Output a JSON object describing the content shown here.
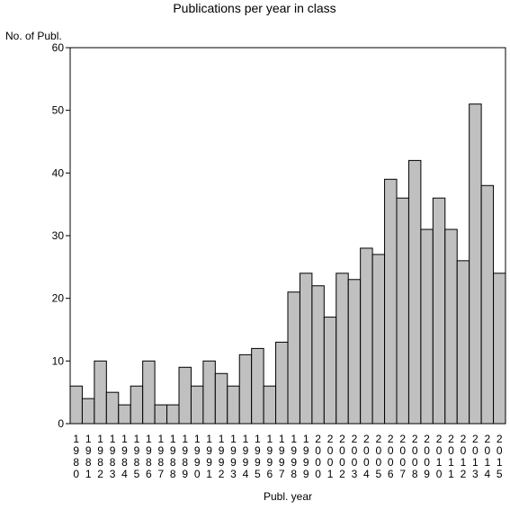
{
  "chart_data": {
    "type": "bar",
    "title": "Publications per year in class",
    "ylabel": "No. of Publ.",
    "xlabel": "Publ. year",
    "ylim": [
      0,
      60
    ],
    "yticks": [
      0,
      10,
      20,
      30,
      40,
      50,
      60
    ],
    "grid": false,
    "bar_color": "#c0c0c0",
    "categories": [
      "1980",
      "1981",
      "1982",
      "1983",
      "1984",
      "1985",
      "1986",
      "1987",
      "1988",
      "1989",
      "1990",
      "1991",
      "1992",
      "1993",
      "1994",
      "1995",
      "1996",
      "1997",
      "1998",
      "1999",
      "2000",
      "2001",
      "2002",
      "2003",
      "2004",
      "2005",
      "2006",
      "2007",
      "2008",
      "2009",
      "2010",
      "2011",
      "2012",
      "2013",
      "2014",
      "2015"
    ],
    "values": [
      6,
      4,
      10,
      5,
      3,
      6,
      10,
      3,
      3,
      9,
      6,
      10,
      8,
      6,
      11,
      12,
      6,
      13,
      21,
      24,
      22,
      17,
      24,
      23,
      28,
      27,
      39,
      36,
      42,
      31,
      36,
      31,
      26,
      51,
      38,
      24
    ]
  }
}
